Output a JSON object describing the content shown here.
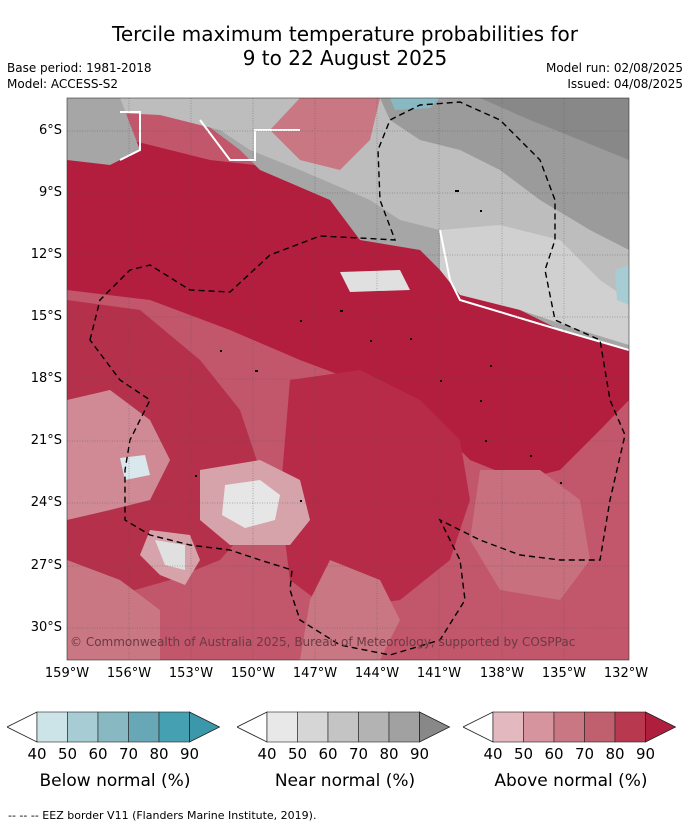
{
  "title_line1": "Tercile maximum temperature probabilities for",
  "title_line2": "9 to 22 August 2025",
  "base_period": "Base period: 1981-2018",
  "model": "Model: ACCESS-S2",
  "model_run": "Model run: 02/08/2025",
  "issued": "Issued: 04/08/2025",
  "copyright": "© Commonwealth of Australia 2025, Bureau of Meteorology, supported by COSPPac",
  "footer": "-- -- -- EEZ border V11 (Flanders Marine Institute, 2019).",
  "lat_ticks": [
    "6°S",
    "9°S",
    "12°S",
    "15°S",
    "18°S",
    "21°S",
    "24°S",
    "27°S",
    "30°S"
  ],
  "lon_ticks": [
    "159°W",
    "156°W",
    "153°W",
    "150°W",
    "147°W",
    "144°W",
    "141°W",
    "138°W",
    "135°W",
    "132°W"
  ],
  "legends": [
    {
      "label": "Below normal (%)",
      "ticks": [
        "40",
        "50",
        "60",
        "70",
        "80",
        "90"
      ],
      "colors": [
        "#cce3e8",
        "#a8ccd3",
        "#88b8c2",
        "#68a8b6",
        "#45a0b1"
      ],
      "arrow": "#3a98aa"
    },
    {
      "label": "Near normal (%)",
      "ticks": [
        "40",
        "50",
        "60",
        "70",
        "80",
        "90"
      ],
      "colors": [
        "#e8e8e8",
        "#d6d6d6",
        "#c4c4c4",
        "#b3b3b3",
        "#a1a1a1"
      ],
      "arrow": "#888888"
    },
    {
      "label": "Above normal (%)",
      "ticks": [
        "40",
        "50",
        "60",
        "70",
        "80",
        "90"
      ],
      "colors": [
        "#e3b8be",
        "#d6959e",
        "#c97782",
        "#c0606e",
        "#b8394f"
      ],
      "arrow": "#b01e3e"
    }
  ]
}
